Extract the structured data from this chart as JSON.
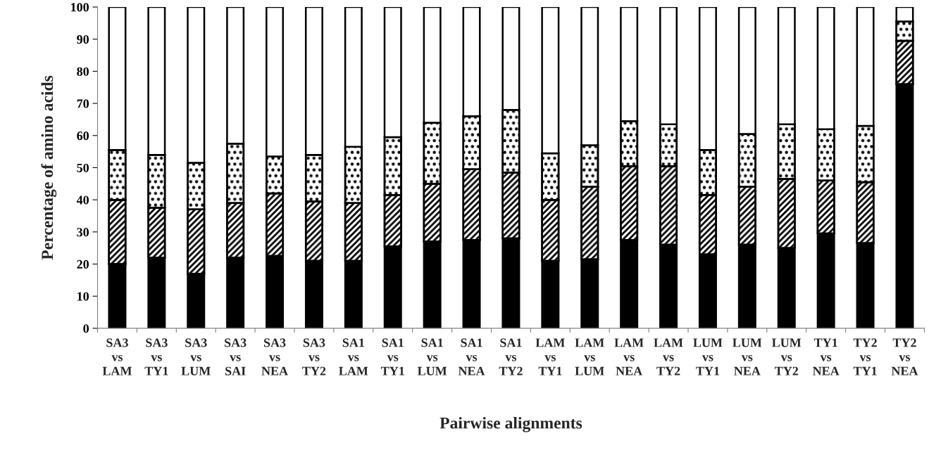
{
  "chart_data": {
    "type": "bar",
    "stacked": true,
    "xlabel": "Pairwise alignments",
    "ylabel": "Percentage of amino acids",
    "categories": [
      "SA3\nvs\nLAM",
      "SA3\nvs\nTY1",
      "SA3\nvs\nLUM",
      "SA3\nvs\nSAI",
      "SA3\nvs\nNEA",
      "SA3\nvs\nTY2",
      "SA1\nvs\nLAM",
      "SA1\nvs\nTY1",
      "SA1\nvs\nLUM",
      "SA1\nvs\nNEA",
      "SA1\nvs\nTY2",
      "LAM\nvs\nTY1",
      "LAM\nvs\nLUM",
      "LAM\nvs\nNEA",
      "LAM\nvs\nTY2",
      "LUM\nvs\nTY1",
      "LUM\nvs\nNEA",
      "LUM\nvs\nTY2",
      "TY1\nvs\nNEA",
      "TY2\nvs\nTY1",
      "TY2\nvs\nNEA"
    ],
    "series": [
      {
        "color": "#000000",
        "values": [
          20,
          22,
          17,
          22,
          22.5,
          21,
          21,
          25.5,
          27,
          27.5,
          28,
          21,
          21.5,
          27.5,
          26,
          23,
          26,
          25,
          29.5,
          26.5,
          76
        ]
      },
      {
        "color": "#000000",
        "values": [
          20,
          15.5,
          20,
          17,
          19.5,
          18.5,
          18,
          16,
          18,
          22,
          20.5,
          19,
          22.5,
          23,
          24.5,
          18.5,
          18,
          21.5,
          16.5,
          19,
          13.5
        ]
      },
      {
        "color": "#000000",
        "values": [
          15.5,
          16.5,
          14.5,
          18.5,
          11.5,
          14.5,
          17.5,
          18,
          19,
          16.5,
          19.5,
          14.5,
          13,
          14,
          13,
          14,
          16.5,
          17,
          16,
          17.5,
          6
        ]
      },
      {
        "color": "#ffffff",
        "values": [
          44.5,
          46,
          48.5,
          42.5,
          46.5,
          46,
          43.5,
          40.5,
          36,
          34,
          32,
          45.5,
          43,
          35.5,
          36.5,
          44.5,
          39.5,
          36.5,
          38,
          37,
          4.5
        ]
      }
    ],
    "ylim": [
      0,
      100
    ],
    "yticks": [
      0,
      10,
      20,
      30,
      40,
      50,
      60,
      70,
      80,
      90,
      100
    ],
    "grid": false,
    "legend": false
  }
}
